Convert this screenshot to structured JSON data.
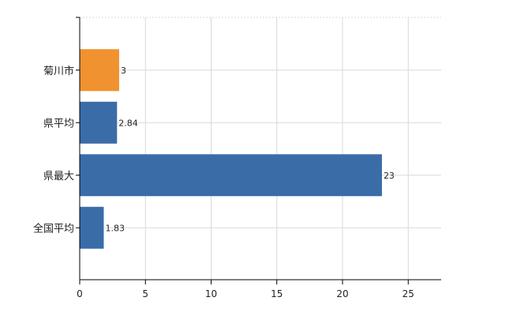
{
  "chart_data": {
    "type": "bar",
    "orientation": "horizontal",
    "categories": [
      "菊川市",
      "県平均",
      "県最大",
      "全国平均"
    ],
    "values": [
      3,
      2.84,
      23,
      1.83
    ],
    "value_labels": [
      "3",
      "2.84",
      "23",
      "1.83"
    ],
    "bar_colors": [
      "#f0922f",
      "#3a6ca8",
      "#3a6ca8",
      "#3a6ca8"
    ],
    "xlim": [
      0,
      27.5
    ],
    "xticks": [
      0,
      5,
      10,
      15,
      20,
      25
    ],
    "grid": true,
    "legend": "none",
    "title": "",
    "xlabel": "",
    "ylabel": ""
  }
}
